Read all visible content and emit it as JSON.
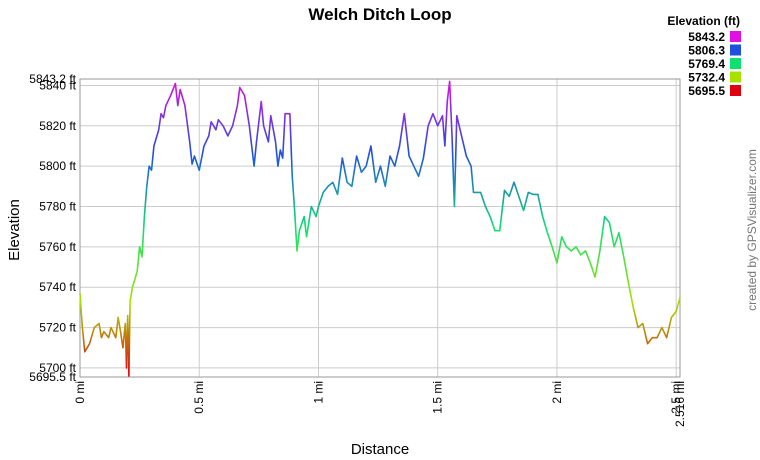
{
  "chart_data": {
    "type": "line",
    "title": "Welch Ditch Loop",
    "x_label": "Distance",
    "y_label": "Elevation",
    "credit": "created by GPSVisualizer.com",
    "legend": {
      "title": "Elevation (ft)",
      "entries": [
        {
          "value": 5843.2,
          "color": "#e010e0"
        },
        {
          "value": 5806.3,
          "color": "#2050e0"
        },
        {
          "value": 5769.4,
          "color": "#10e070"
        },
        {
          "value": 5732.4,
          "color": "#a8e000"
        },
        {
          "value": 5695.5,
          "color": "#e00010"
        }
      ]
    },
    "xlim": [
      0,
      2.516
    ],
    "ylim": [
      5695.5,
      5843.2
    ],
    "xticks": [
      {
        "value": 0,
        "label": "0 mi"
      },
      {
        "value": 0.5,
        "label": "0.5 mi"
      },
      {
        "value": 1,
        "label": "1 mi"
      },
      {
        "value": 1.5,
        "label": "1.5 mi"
      },
      {
        "value": 2,
        "label": "2 mi"
      },
      {
        "value": 2.5,
        "label": "2.5 mi"
      },
      {
        "value": 2.516,
        "label": "2.516 mi"
      }
    ],
    "yticks": [
      {
        "value": 5695.5,
        "label": "5695.5 ft"
      },
      {
        "value": 5700,
        "label": "5700 ft"
      },
      {
        "value": 5720,
        "label": "5720 ft"
      },
      {
        "value": 5740,
        "label": "5740 ft"
      },
      {
        "value": 5760,
        "label": "5760 ft"
      },
      {
        "value": 5780,
        "label": "5780 ft"
      },
      {
        "value": 5800,
        "label": "5800 ft"
      },
      {
        "value": 5820,
        "label": "5820 ft"
      },
      {
        "value": 5840,
        "label": "5840 ft"
      },
      {
        "value": 5843.2,
        "label": "5843.2 ft"
      }
    ],
    "grid": true,
    "x": [
      0,
      0.01,
      0.02,
      0.04,
      0.06,
      0.08,
      0.09,
      0.1,
      0.12,
      0.13,
      0.15,
      0.16,
      0.17,
      0.18,
      0.19,
      0.195,
      0.2,
      0.205,
      0.21,
      0.22,
      0.24,
      0.25,
      0.26,
      0.27,
      0.28,
      0.29,
      0.3,
      0.31,
      0.33,
      0.34,
      0.35,
      0.36,
      0.38,
      0.4,
      0.41,
      0.42,
      0.44,
      0.46,
      0.47,
      0.48,
      0.5,
      0.52,
      0.54,
      0.55,
      0.57,
      0.58,
      0.6,
      0.62,
      0.64,
      0.66,
      0.67,
      0.69,
      0.71,
      0.73,
      0.74,
      0.76,
      0.77,
      0.79,
      0.8,
      0.82,
      0.83,
      0.84,
      0.85,
      0.86,
      0.88,
      0.89,
      0.9,
      0.91,
      0.92,
      0.94,
      0.95,
      0.97,
      0.99,
      1.0,
      1.02,
      1.04,
      1.06,
      1.08,
      1.1,
      1.12,
      1.14,
      1.16,
      1.18,
      1.2,
      1.22,
      1.24,
      1.26,
      1.28,
      1.3,
      1.32,
      1.34,
      1.36,
      1.38,
      1.4,
      1.42,
      1.44,
      1.46,
      1.48,
      1.5,
      1.52,
      1.53,
      1.54,
      1.55,
      1.56,
      1.57,
      1.58,
      1.6,
      1.62,
      1.64,
      1.65,
      1.68,
      1.7,
      1.72,
      1.74,
      1.76,
      1.78,
      1.8,
      1.82,
      1.84,
      1.86,
      1.88,
      1.9,
      1.92,
      1.94,
      1.96,
      1.98,
      2.0,
      2.02,
      2.04,
      2.06,
      2.08,
      2.1,
      2.12,
      2.14,
      2.16,
      2.18,
      2.2,
      2.22,
      2.24,
      2.26,
      2.28,
      2.3,
      2.32,
      2.34,
      2.36,
      2.38,
      2.4,
      2.42,
      2.44,
      2.46,
      2.48,
      2.5,
      2.516
    ],
    "values": [
      5737,
      5720,
      5708,
      5712,
      5720,
      5722,
      5715,
      5718,
      5715,
      5720,
      5715,
      5725,
      5718,
      5710,
      5722,
      5700,
      5726,
      5696,
      5733,
      5740,
      5748,
      5760,
      5755,
      5775,
      5790,
      5800,
      5798,
      5810,
      5818,
      5826,
      5824,
      5830,
      5835,
      5841,
      5830,
      5838,
      5830,
      5812,
      5801,
      5805,
      5798,
      5810,
      5815,
      5822,
      5818,
      5823,
      5820,
      5815,
      5820,
      5830,
      5839,
      5835,
      5820,
      5800,
      5812,
      5832,
      5820,
      5812,
      5825,
      5812,
      5800,
      5808,
      5804,
      5826,
      5826,
      5795,
      5778,
      5758,
      5768,
      5775,
      5765,
      5780,
      5775,
      5780,
      5787,
      5790,
      5792,
      5786,
      5804,
      5792,
      5790,
      5805,
      5797,
      5800,
      5810,
      5792,
      5800,
      5790,
      5805,
      5800,
      5810,
      5826,
      5805,
      5800,
      5795,
      5804,
      5820,
      5826,
      5820,
      5825,
      5810,
      5832,
      5842,
      5815,
      5780,
      5825,
      5815,
      5805,
      5800,
      5787,
      5787,
      5780,
      5775,
      5768,
      5768,
      5788,
      5785,
      5792,
      5785,
      5778,
      5787,
      5786,
      5786,
      5775,
      5767,
      5760,
      5752,
      5765,
      5760,
      5758,
      5760,
      5756,
      5758,
      5752,
      5745,
      5758,
      5775,
      5772,
      5760,
      5767,
      5755,
      5742,
      5730,
      5720,
      5722,
      5712,
      5715,
      5715,
      5720,
      5715,
      5725,
      5728,
      5735
    ]
  }
}
